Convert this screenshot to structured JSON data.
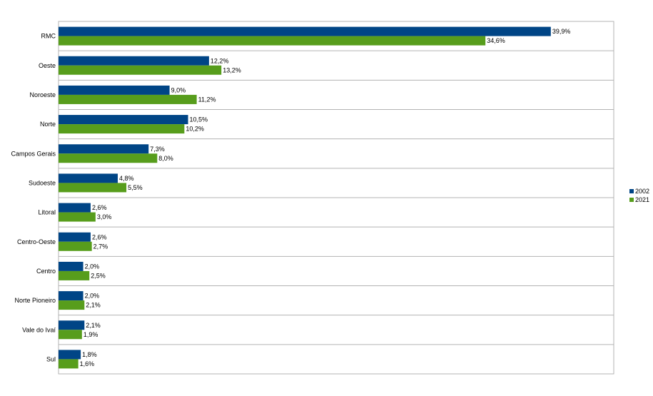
{
  "chart_data": {
    "type": "bar",
    "orientation": "horizontal",
    "categories": [
      "RMC",
      "Oeste",
      "Noroeste",
      "Norte",
      "Campos Gerais",
      "Sudoeste",
      "Litoral",
      "Centro-Oeste",
      "Centro",
      "Norte Pioneiro",
      "Vale do Ivaí",
      "Sul"
    ],
    "series": [
      {
        "name": "2002",
        "color": "#004586",
        "values": [
          39.9,
          12.2,
          9.0,
          10.5,
          7.3,
          4.8,
          2.6,
          2.6,
          2.0,
          2.0,
          2.1,
          1.8
        ],
        "labels": [
          "39,9%",
          "12,2%",
          "9,0%",
          "10,5%",
          "7,3%",
          "4,8%",
          "2,6%",
          "2,6%",
          "2,0%",
          "2,0%",
          "2,1%",
          "1,8%"
        ]
      },
      {
        "name": "2021",
        "color": "#579D1C",
        "values": [
          34.6,
          13.2,
          11.2,
          10.2,
          8.0,
          5.5,
          3.0,
          2.7,
          2.5,
          2.1,
          1.9,
          1.6
        ],
        "labels": [
          "34,6%",
          "13,2%",
          "11,2%",
          "10,2%",
          "8,0%",
          "5,5%",
          "3,0%",
          "2,7%",
          "2,5%",
          "2,1%",
          "1,9%",
          "1,6%"
        ]
      }
    ],
    "xlim": [
      0,
      45
    ],
    "grid": true,
    "legend": "right"
  }
}
